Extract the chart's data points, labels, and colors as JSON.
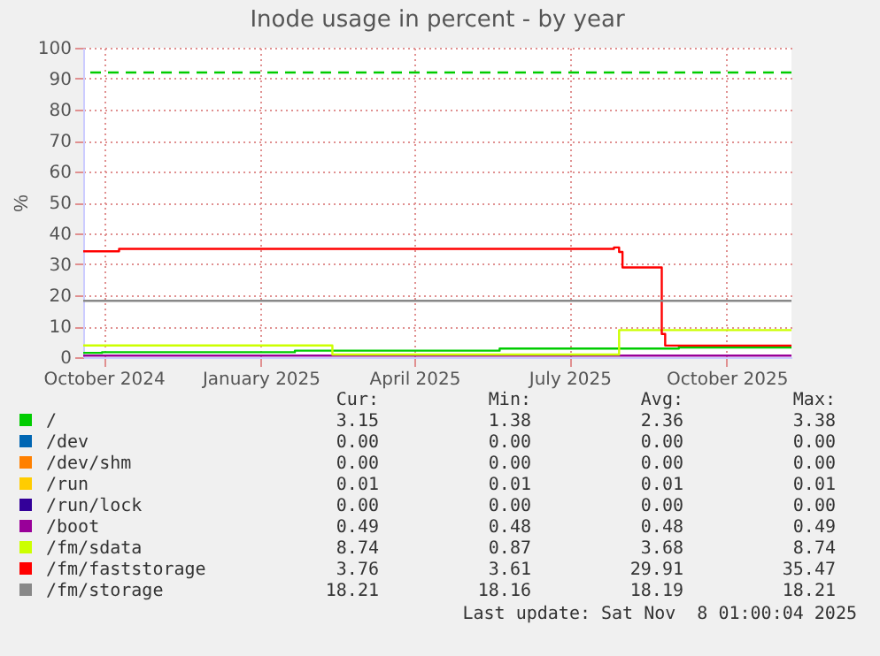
{
  "chart_data": {
    "type": "step",
    "title": "Inode usage in percent - by year",
    "ylabel": "%",
    "xlim": [
      "2024-09-19",
      "2025-11-08"
    ],
    "xticks": [
      {
        "value": "2024-10-01",
        "label": "October 2024"
      },
      {
        "value": "2025-01-01",
        "label": "January 2025"
      },
      {
        "value": "2025-04-01",
        "label": "April 2025"
      },
      {
        "value": "2025-07-01",
        "label": "July 2025"
      },
      {
        "value": "2025-10-01",
        "label": "October 2025"
      }
    ],
    "ylim": [
      0,
      100
    ],
    "yticks": [
      0,
      10,
      20,
      30,
      40,
      50,
      60,
      70,
      80,
      90,
      100
    ],
    "grid": true,
    "legend": "bottom",
    "series": [
      {
        "name": "/",
        "color": "#00cc00",
        "x": [
          "2024-09-19",
          "2024-09-30",
          "2025-01-21",
          "2025-05-21",
          "2025-09-03",
          "2025-11-08"
        ],
        "values": [
          1.38,
          1.6,
          2.1,
          2.8,
          3.15,
          3.15
        ]
      },
      {
        "name": "/dev",
        "color": "#0066b3"
      },
      {
        "name": "/dev/shm",
        "color": "#ff8000"
      },
      {
        "name": "/run",
        "color": "#ffcc00"
      },
      {
        "name": "/run/lock",
        "color": "#330099"
      },
      {
        "name": "/boot",
        "color": "#990099",
        "x": [
          "2024-09-19",
          "2025-11-08"
        ],
        "values": [
          0.49,
          0.49
        ]
      },
      {
        "name": "/fm/sdata",
        "color": "#ccff00",
        "x": [
          "2024-09-19",
          "2025-02-12",
          "2025-07-30",
          "2025-11-08"
        ],
        "values": [
          3.8,
          0.87,
          8.74,
          8.74
        ]
      },
      {
        "name": "/fm/faststorage",
        "color": "#ff0000",
        "x": [
          "2024-09-19",
          "2024-10-10",
          "2025-07-27",
          "2025-07-30",
          "2025-08-01",
          "2025-08-24",
          "2025-08-26",
          "2025-11-08"
        ],
        "values": [
          34.2,
          35.0,
          35.47,
          34.0,
          29.0,
          7.5,
          3.76,
          3.76
        ]
      },
      {
        "name": "/fm/storage",
        "color": "#888888",
        "x": [
          "2024-09-19",
          "2025-11-08"
        ],
        "values": [
          18.21,
          18.21
        ]
      }
    ],
    "ref_lines": [
      {
        "axis": "y",
        "value": 92,
        "color": "#00cc00",
        "line_style": "dashed"
      }
    ],
    "annotations": [
      "Cur:",
      "Min:",
      "Avg:",
      "Max:",
      "3.15",
      "1.38",
      "2.36",
      "3.38",
      "0.00",
      "0.00",
      "0.00",
      "0.00",
      "0.00",
      "0.00",
      "0.00",
      "0.00",
      "0.01",
      "0.01",
      "0.01",
      "0.01",
      "0.00",
      "0.00",
      "0.00",
      "0.00",
      "0.49",
      "0.48",
      "0.48",
      "0.49",
      "8.74",
      "0.87",
      "3.68",
      "8.74",
      "3.76",
      "3.61",
      "29.91",
      "35.47",
      "18.21",
      "18.16",
      "18.19",
      "18.21",
      "Last update: Sat Nov  8 01:00:04 2025"
    ]
  }
}
